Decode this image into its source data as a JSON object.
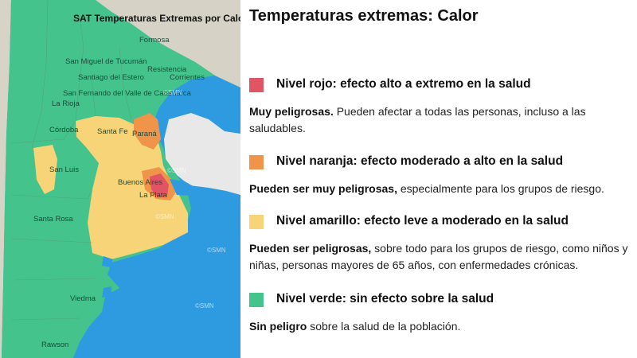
{
  "map": {
    "title": "SAT Temperaturas Extremas por Calor",
    "watermark": "©SMN",
    "cities": [
      "Formosa",
      "San Miguel de Tucumán",
      "Resistencia",
      "Santiago del Estero",
      "Corrientes",
      "San Fernando del Valle de Catamarca",
      "La Rioja",
      "Córdoba",
      "Santa Fe",
      "Paraná",
      "San Luis",
      "Buenos Aires",
      "La Plata",
      "Santa Rosa",
      "Viedma",
      "Rawson"
    ],
    "colors": {
      "rojo": "#e05564",
      "naranja": "#f0944a",
      "amarillo": "#f7d478",
      "verde": "#44c48c",
      "agua": "#2e9be0",
      "uruguay": "#e8e8e8"
    }
  },
  "panel": {
    "title": "Temperaturas extremas: Calor",
    "levels": [
      {
        "color": "#e05564",
        "label": "Nivel rojo: efecto alto a extremo en la salud",
        "bold": "Muy peligrosas.",
        "rest": " Pueden afectar a todas las personas, incluso a las saludables."
      },
      {
        "color": "#f0944a",
        "label": "Nivel naranja: efecto moderado a alto en la salud",
        "bold": "Pueden ser muy peligrosas,",
        "rest": " especialmente para los grupos de riesgo."
      },
      {
        "color": "#f7d478",
        "label": "Nivel amarillo: efecto leve a moderado en la salud",
        "bold": "Pueden ser peligrosas,",
        "rest": " sobre todo para los grupos de riesgo, como niños y niñas, personas mayores de 65 años, con enfermedades crónicas."
      },
      {
        "color": "#44c48c",
        "label": "Nivel verde: sin efecto sobre la salud",
        "bold": "Sin peligro",
        "rest": " sobre la salud de la población."
      }
    ]
  }
}
